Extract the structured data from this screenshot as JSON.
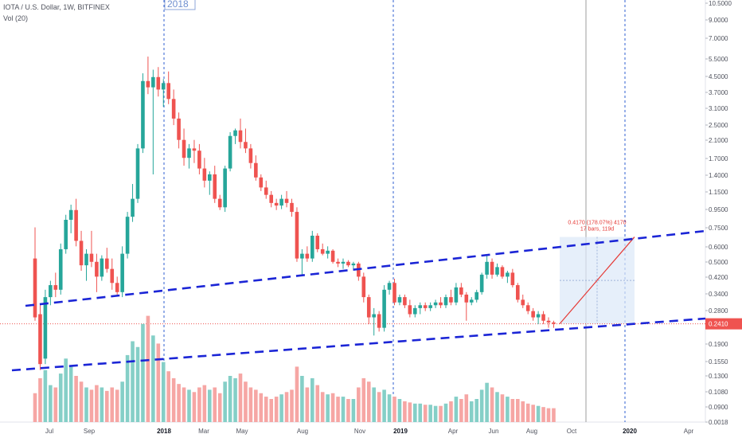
{
  "header": {
    "symbol_line": "IOTA / U.S. Dollar, 1W, BITFINEX",
    "volume_line": "Vol (20)"
  },
  "year_label": "2018",
  "colors": {
    "up": "#26a69a",
    "down": "#ef5350",
    "up_vol": "#85cfc7",
    "down_vol": "#f6a6a4",
    "channel": "#1b25d6",
    "projection": "#e53935",
    "box": "#dbe8f8",
    "price_line": "#ef5350",
    "vline": "#2f5fd0"
  },
  "chart_data": {
    "type": "candlestick",
    "title": "IOTA / U.S. Dollar, 1W, BITFINEX",
    "y_scale": "log",
    "y_ticks": [
      10.5,
      9.0,
      7.0,
      5.5,
      4.5,
      3.7,
      3.1,
      2.5,
      2.1,
      1.7,
      1.4,
      1.15,
      0.95,
      0.75,
      0.6,
      0.5,
      0.42,
      0.34,
      0.28,
      0.241,
      0.19,
      0.155,
      0.13,
      0.108,
      0.09,
      0.0018
    ],
    "y_tick_labels": [
      "10.5000",
      "9.0000",
      "7.0000",
      "5.5000",
      "4.5000",
      "3.7000",
      "3.1000",
      "2.5000",
      "2.1000",
      "1.7000",
      "1.4000",
      "1.1500",
      "0.9500",
      "0.7500",
      "0.6000",
      "0.5000",
      "0.4200",
      "0.3400",
      "0.2800",
      "0.2410",
      "0.1900",
      "0.1550",
      "0.1300",
      "0.1080",
      "0.0900",
      "0.0018"
    ],
    "x_ticks": [
      "Jul",
      "Sep",
      "2018",
      "Mar",
      "May",
      "Aug",
      "Nov",
      "2019",
      "Apr",
      "Jun",
      "Aug",
      "Oct",
      "2020",
      "Apr"
    ],
    "x_tick_bold": [
      false,
      false,
      true,
      false,
      false,
      false,
      false,
      true,
      false,
      false,
      false,
      false,
      true,
      false
    ],
    "last_price": 0.241,
    "last_price_label": "0.2410",
    "measure_label_1": "0.4170 (178.07%) 4170",
    "measure_label_2": "17 bars, 119d",
    "candles": [
      [
        0.52,
        0.75,
        0.25,
        0.26,
        25
      ],
      [
        0.27,
        0.3,
        0.14,
        0.15,
        38
      ],
      [
        0.16,
        0.36,
        0.15,
        0.33,
        45
      ],
      [
        0.33,
        0.4,
        0.3,
        0.38,
        32
      ],
      [
        0.38,
        0.44,
        0.33,
        0.36,
        30
      ],
      [
        0.36,
        0.62,
        0.34,
        0.58,
        42
      ],
      [
        0.58,
        0.87,
        0.55,
        0.82,
        55
      ],
      [
        0.82,
        0.98,
        0.7,
        0.92,
        48
      ],
      [
        0.92,
        1.05,
        0.6,
        0.64,
        40
      ],
      [
        0.64,
        0.72,
        0.45,
        0.48,
        35
      ],
      [
        0.48,
        0.58,
        0.4,
        0.55,
        30
      ],
      [
        0.55,
        0.72,
        0.47,
        0.5,
        28
      ],
      [
        0.5,
        0.55,
        0.35,
        0.42,
        32
      ],
      [
        0.42,
        0.54,
        0.4,
        0.52,
        30
      ],
      [
        0.52,
        0.59,
        0.44,
        0.46,
        27
      ],
      [
        0.46,
        0.52,
        0.36,
        0.39,
        30
      ],
      [
        0.39,
        0.42,
        0.34,
        0.35,
        28
      ],
      [
        0.35,
        0.6,
        0.33,
        0.55,
        35
      ],
      [
        0.55,
        0.9,
        0.52,
        0.85,
        58
      ],
      [
        0.85,
        1.25,
        0.8,
        1.05,
        70
      ],
      [
        1.05,
        2.0,
        1.0,
        1.9,
        65
      ],
      [
        1.9,
        4.6,
        1.8,
        4.2,
        85
      ],
      [
        4.2,
        5.6,
        3.6,
        3.9,
        92
      ],
      [
        3.9,
        4.8,
        1.4,
        4.4,
        75
      ],
      [
        4.4,
        4.95,
        3.5,
        3.8,
        68
      ],
      [
        3.8,
        4.3,
        3.1,
        4.1,
        52
      ],
      [
        4.1,
        4.7,
        3.2,
        3.4,
        44
      ],
      [
        3.4,
        3.8,
        2.5,
        2.7,
        38
      ],
      [
        2.7,
        2.9,
        1.9,
        2.1,
        33
      ],
      [
        2.1,
        2.4,
        1.55,
        1.7,
        30
      ],
      [
        1.7,
        2.0,
        1.5,
        1.9,
        28
      ],
      [
        1.9,
        2.1,
        1.6,
        1.85,
        26
      ],
      [
        1.85,
        2.0,
        1.4,
        1.5,
        30
      ],
      [
        1.5,
        1.7,
        1.2,
        1.3,
        32
      ],
      [
        1.3,
        1.45,
        1.1,
        1.4,
        28
      ],
      [
        1.4,
        1.55,
        1.0,
        1.05,
        30
      ],
      [
        1.05,
        1.1,
        0.92,
        0.95,
        25
      ],
      [
        0.95,
        1.55,
        0.9,
        1.5,
        35
      ],
      [
        1.5,
        2.3,
        1.45,
        2.2,
        40
      ],
      [
        2.2,
        2.4,
        2.0,
        2.35,
        38
      ],
      [
        2.35,
        2.7,
        1.9,
        2.05,
        42
      ],
      [
        2.05,
        2.4,
        1.8,
        1.9,
        35
      ],
      [
        1.9,
        2.0,
        1.5,
        1.6,
        30
      ],
      [
        1.6,
        1.75,
        1.3,
        1.35,
        28
      ],
      [
        1.35,
        1.4,
        1.15,
        1.2,
        25
      ],
      [
        1.2,
        1.3,
        1.05,
        1.1,
        22
      ],
      [
        1.1,
        1.15,
        0.95,
        1.0,
        20
      ],
      [
        1.0,
        1.05,
        0.92,
        0.97,
        22
      ],
      [
        0.97,
        1.1,
        0.93,
        1.05,
        24
      ],
      [
        1.05,
        1.15,
        0.95,
        1.0,
        26
      ],
      [
        1.0,
        1.05,
        0.85,
        0.9,
        28
      ],
      [
        0.9,
        0.95,
        0.5,
        0.52,
        48
      ],
      [
        0.52,
        0.58,
        0.43,
        0.55,
        40
      ],
      [
        0.55,
        0.6,
        0.5,
        0.52,
        30
      ],
      [
        0.52,
        0.72,
        0.5,
        0.68,
        38
      ],
      [
        0.68,
        0.7,
        0.56,
        0.58,
        32
      ],
      [
        0.58,
        0.62,
        0.54,
        0.55,
        26
      ],
      [
        0.55,
        0.6,
        0.52,
        0.57,
        24
      ],
      [
        0.57,
        0.58,
        0.49,
        0.5,
        25
      ],
      [
        0.5,
        0.52,
        0.47,
        0.49,
        22
      ],
      [
        0.49,
        0.52,
        0.46,
        0.5,
        22
      ],
      [
        0.5,
        0.51,
        0.47,
        0.48,
        20
      ],
      [
        0.48,
        0.5,
        0.46,
        0.49,
        20
      ],
      [
        0.49,
        0.5,
        0.4,
        0.42,
        30
      ],
      [
        0.42,
        0.44,
        0.31,
        0.33,
        38
      ],
      [
        0.33,
        0.34,
        0.24,
        0.26,
        35
      ],
      [
        0.26,
        0.29,
        0.21,
        0.27,
        30
      ],
      [
        0.27,
        0.28,
        0.22,
        0.23,
        26
      ],
      [
        0.23,
        0.38,
        0.22,
        0.36,
        28
      ],
      [
        0.36,
        0.4,
        0.34,
        0.39,
        24
      ],
      [
        0.39,
        0.41,
        0.3,
        0.31,
        22
      ],
      [
        0.31,
        0.34,
        0.3,
        0.33,
        20
      ],
      [
        0.33,
        0.34,
        0.29,
        0.3,
        18
      ],
      [
        0.3,
        0.32,
        0.26,
        0.27,
        17
      ],
      [
        0.27,
        0.3,
        0.26,
        0.29,
        16
      ],
      [
        0.29,
        0.31,
        0.27,
        0.3,
        16
      ],
      [
        0.3,
        0.31,
        0.28,
        0.29,
        15
      ],
      [
        0.29,
        0.31,
        0.28,
        0.3,
        15
      ],
      [
        0.3,
        0.32,
        0.29,
        0.31,
        14
      ],
      [
        0.31,
        0.33,
        0.29,
        0.3,
        14
      ],
      [
        0.3,
        0.34,
        0.29,
        0.33,
        16
      ],
      [
        0.33,
        0.36,
        0.3,
        0.31,
        18
      ],
      [
        0.31,
        0.39,
        0.3,
        0.37,
        22
      ],
      [
        0.37,
        0.39,
        0.33,
        0.34,
        20
      ],
      [
        0.34,
        0.35,
        0.25,
        0.31,
        24
      ],
      [
        0.31,
        0.33,
        0.3,
        0.32,
        18
      ],
      [
        0.32,
        0.36,
        0.31,
        0.35,
        20
      ],
      [
        0.35,
        0.44,
        0.34,
        0.43,
        28
      ],
      [
        0.43,
        0.54,
        0.41,
        0.5,
        34
      ],
      [
        0.5,
        0.52,
        0.41,
        0.43,
        30
      ],
      [
        0.43,
        0.49,
        0.42,
        0.47,
        26
      ],
      [
        0.47,
        0.48,
        0.41,
        0.42,
        24
      ],
      [
        0.42,
        0.45,
        0.39,
        0.44,
        22
      ],
      [
        0.44,
        0.46,
        0.37,
        0.38,
        20
      ],
      [
        0.38,
        0.39,
        0.31,
        0.32,
        20
      ],
      [
        0.32,
        0.34,
        0.29,
        0.3,
        18
      ],
      [
        0.3,
        0.31,
        0.27,
        0.28,
        16
      ],
      [
        0.28,
        0.29,
        0.25,
        0.26,
        15
      ],
      [
        0.26,
        0.28,
        0.24,
        0.27,
        14
      ],
      [
        0.27,
        0.28,
        0.24,
        0.25,
        13
      ],
      [
        0.25,
        0.26,
        0.23,
        0.245,
        12
      ],
      [
        0.245,
        0.25,
        0.23,
        0.241,
        12
      ]
    ],
    "channel_upper": [
      {
        "x": "Jun 2017",
        "y": 0.3
      },
      {
        "x": "Jan 2020",
        "y": 0.71
      }
    ],
    "channel_lower": [
      {
        "x": "Jun 2017",
        "y": 0.14
      },
      {
        "x": "Jan 2020",
        "y": 0.25
      }
    ],
    "projection": {
      "from": 0.241,
      "to": 0.67
    }
  }
}
